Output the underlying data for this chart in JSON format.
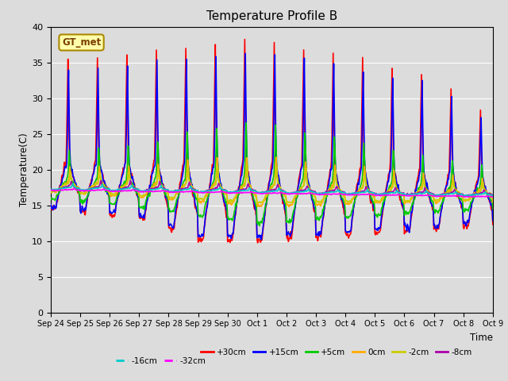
{
  "title": "Temperature Profile B",
  "xlabel": "Time",
  "ylabel": "Temperature(C)",
  "ylim": [
    0,
    40
  ],
  "yticks": [
    0,
    5,
    10,
    15,
    20,
    25,
    30,
    35,
    40
  ],
  "bg_color": "#dcdcdc",
  "gt_met_label": "GT_met",
  "series": [
    {
      "label": "+30cm",
      "color": "#ff0000",
      "lw": 1.2
    },
    {
      "label": "+15cm",
      "color": "#0000ff",
      "lw": 1.2
    },
    {
      "label": "+5cm",
      "color": "#00cc00",
      "lw": 1.2
    },
    {
      "label": "0cm",
      "color": "#ffaa00",
      "lw": 1.2
    },
    {
      "label": "-2cm",
      "color": "#cccc00",
      "lw": 1.2
    },
    {
      "label": "-8cm",
      "color": "#aa00aa",
      "lw": 1.2
    },
    {
      "label": "-16cm",
      "color": "#00cccc",
      "lw": 1.2
    },
    {
      "label": "-32cm",
      "color": "#ff00ff",
      "lw": 1.2
    }
  ],
  "xtick_labels": [
    "Sep 24",
    "Sep 25",
    "Sep 26",
    "Sep 27",
    "Sep 28",
    "Sep 29",
    "Sep 30",
    "Oct 1",
    "Oct 2",
    "Oct 3",
    "Oct 4",
    "Oct 5",
    "Oct 6",
    "Oct 7",
    "Oct 8",
    "Oct 9"
  ],
  "legend_row1": [
    "+30cm",
    "+15cm",
    "+5cm",
    "0cm",
    "-2cm",
    "-8cm"
  ],
  "legend_row2": [
    "-16cm",
    "-32cm"
  ]
}
